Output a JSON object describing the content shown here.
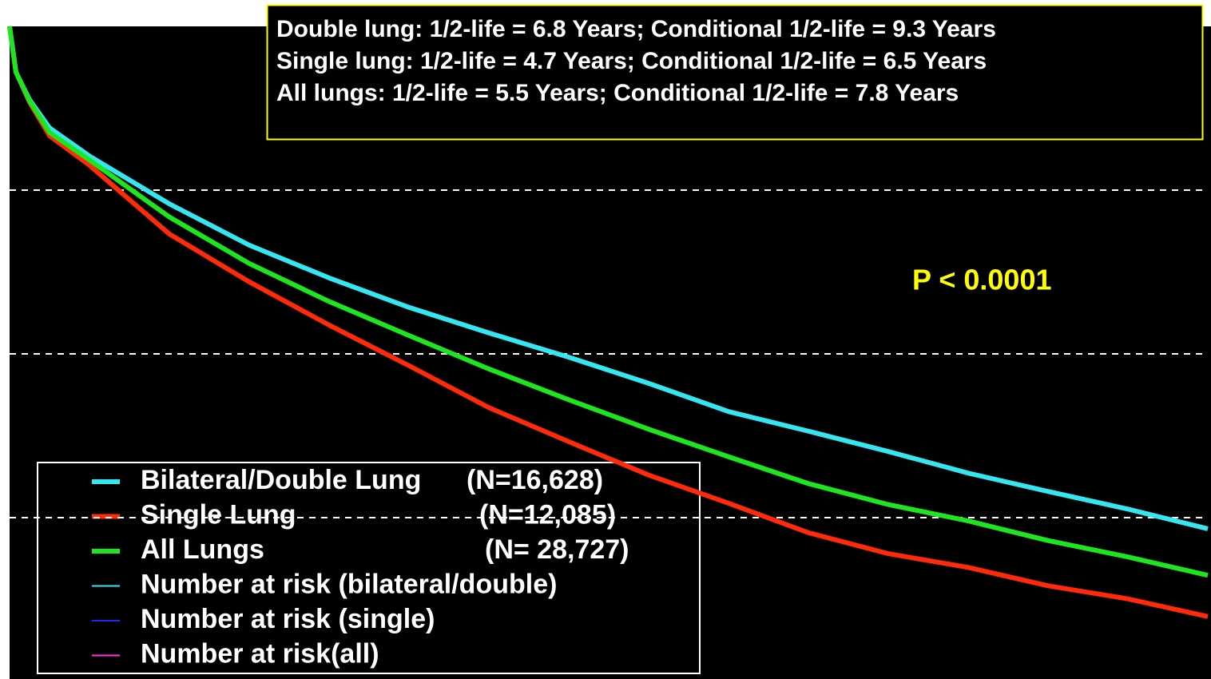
{
  "chart_data": {
    "type": "line",
    "annotations": [
      "Double lung: 1/2-life = 6.8 Years; Conditional 1/2-life = 9.3 Years",
      "Single lung: 1/2-life = 4.7 Years; Conditional 1/2-life = 6.5 Years",
      "All lungs: 1/2-life = 5.5 Years; Conditional 1/2-life = 7.8 Years"
    ],
    "p_value": "P < 0.0001",
    "x": [
      0,
      0.08,
      0.25,
      0.5,
      1,
      2,
      3,
      4,
      5,
      6,
      7,
      8,
      9,
      10,
      11,
      12,
      13,
      14,
      15
    ],
    "xlim": [
      0,
      15
    ],
    "ylim": [
      0,
      100
    ],
    "yticks": [
      25,
      50,
      75
    ],
    "grid": true,
    "series": [
      {
        "name": "Bilateral/Double Lung",
        "legend_n": "(N=16,628)",
        "color": "#33e6f0",
        "values": [
          100,
          93,
          88.8,
          84.5,
          80.2,
          72.9,
          66.6,
          61.6,
          57.1,
          53.2,
          49.5,
          45.5,
          41.2,
          38.2,
          35.1,
          31.8,
          29.0,
          26.3,
          23.3
        ]
      },
      {
        "name": "Single Lung",
        "legend_n": "(N=12,085)",
        "color": "#ff2a0a",
        "values": [
          100,
          93,
          88.4,
          83.3,
          78.8,
          68.3,
          61.0,
          54.4,
          48.2,
          41.8,
          36.6,
          31.5,
          27.2,
          22.7,
          19.5,
          17.4,
          14.6,
          12.6,
          9.9
        ]
      },
      {
        "name": "All Lungs",
        "legend_n": "(N= 28,727)",
        "color": "#1ee61e",
        "values": [
          100,
          93,
          88.6,
          83.8,
          79.6,
          70.9,
          63.8,
          58.0,
          52.8,
          47.7,
          43.0,
          38.5,
          34.3,
          30.2,
          27.0,
          24.5,
          21.5,
          19.0,
          16.2
        ]
      }
    ],
    "legend_extra": [
      {
        "name": "Number at risk (bilateral/double)",
        "color": "#33e6f0"
      },
      {
        "name": "Number at risk (single)",
        "color": "#1a2aff"
      },
      {
        "name": "Number at risk(all)",
        "color": "#ff33dd"
      }
    ]
  }
}
